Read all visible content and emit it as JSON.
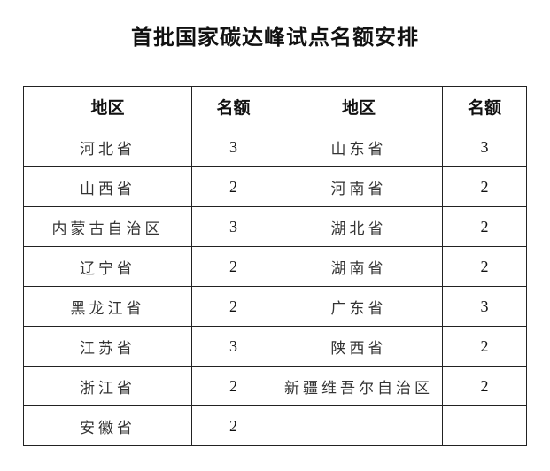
{
  "title": "首批国家碳达峰试点名额安排",
  "headers": [
    "地区",
    "名额",
    "地区",
    "名额"
  ],
  "rows": [
    {
      "region1": "河北省",
      "quota1": "3",
      "region2": "山东省",
      "quota2": "3"
    },
    {
      "region1": "山西省",
      "quota1": "2",
      "region2": "河南省",
      "quota2": "2"
    },
    {
      "region1": "内蒙古自治区",
      "quota1": "3",
      "region2": "湖北省",
      "quota2": "2"
    },
    {
      "region1": "辽宁省",
      "quota1": "2",
      "region2": "湖南省",
      "quota2": "2"
    },
    {
      "region1": "黑龙江省",
      "quota1": "2",
      "region2": "广东省",
      "quota2": "3"
    },
    {
      "region1": "江苏省",
      "quota1": "3",
      "region2": "陕西省",
      "quota2": "2"
    },
    {
      "region1": "浙江省",
      "quota1": "2",
      "region2": "新疆维吾尔自治区",
      "quota2": "2"
    },
    {
      "region1": "安徽省",
      "quota1": "2",
      "region2": "",
      "quota2": ""
    }
  ]
}
